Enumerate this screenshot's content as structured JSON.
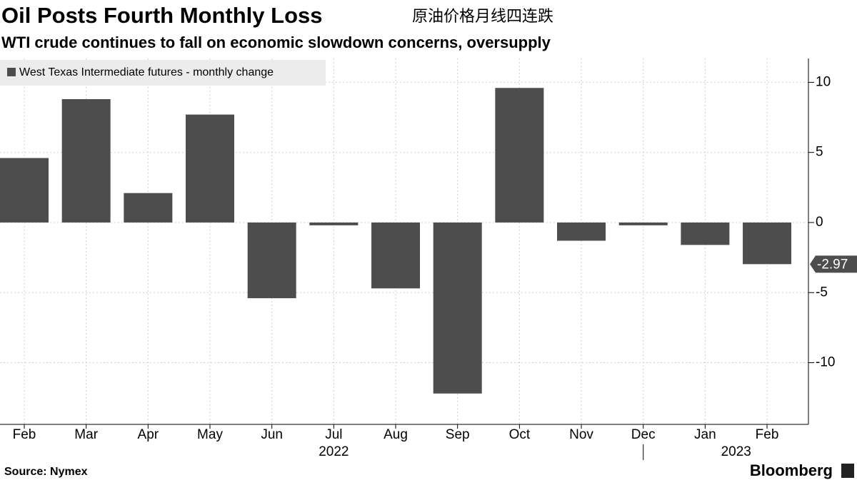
{
  "chart_data": {
    "type": "bar",
    "title": "Oil Posts Fourth Monthly Loss",
    "title_zh": "原油价格月线四连跌",
    "subtitle": "WTI crude continues to fall on economic slowdown concerns, oversupply",
    "categories": [
      "Feb",
      "Mar",
      "Apr",
      "May",
      "Jun",
      "Jul",
      "Aug",
      "Sep",
      "Oct",
      "Nov",
      "Dec",
      "Jan",
      "Feb"
    ],
    "x_groups": [
      {
        "label": "2022",
        "first": 0,
        "last": 10
      },
      {
        "label": "2023",
        "first": 11,
        "last": 12
      }
    ],
    "series": [
      {
        "name": "West Texas Intermediate futures - monthly change",
        "color": "#4d4d4d",
        "values": [
          4.6,
          8.8,
          2.1,
          7.7,
          -5.4,
          -0.2,
          -4.7,
          -12.2,
          9.6,
          -1.3,
          -0.2,
          -1.6,
          -2.97
        ]
      }
    ],
    "ylim": [
      -14.4,
      11.7
    ],
    "yticks": [
      -10,
      -5,
      0,
      5,
      10
    ],
    "grid": true,
    "source": "Source: Nymex",
    "brand": "Bloomberg"
  }
}
